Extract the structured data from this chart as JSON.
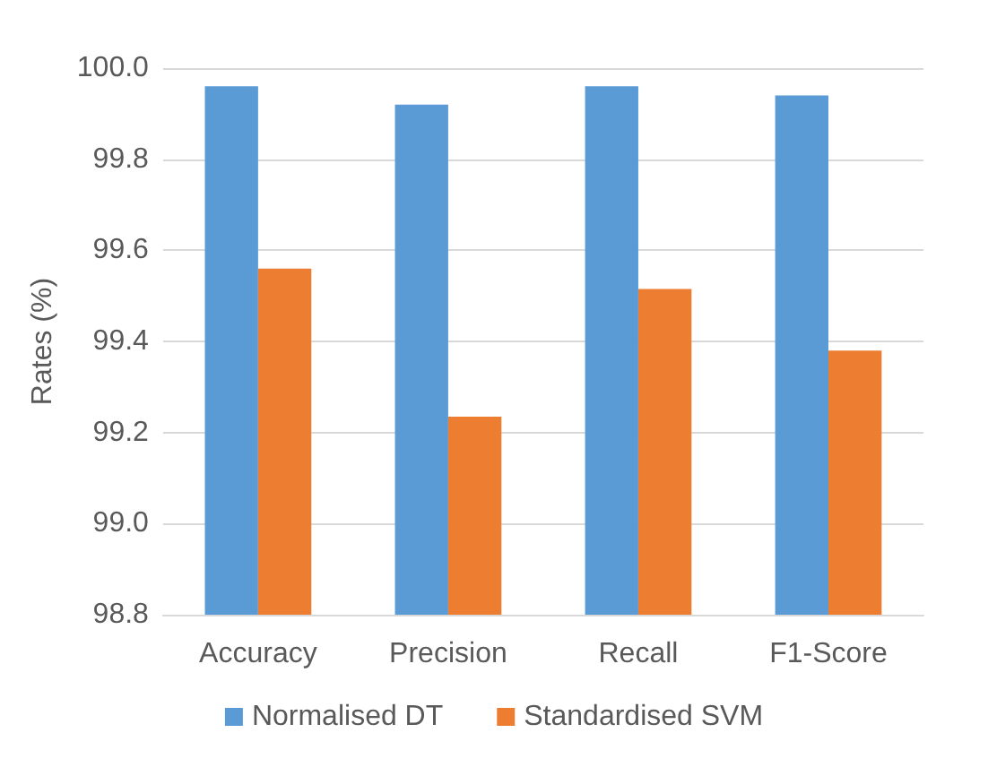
{
  "chart_data": {
    "type": "bar",
    "ylabel": "Rates (%)",
    "categories": [
      "Accuracy",
      "Precision",
      "Recall",
      "F1-Score"
    ],
    "series": [
      {
        "name": "Normalised DT",
        "color": "#5b9bd5",
        "values": [
          99.96,
          99.92,
          99.96,
          99.94
        ]
      },
      {
        "name": "Standardised SVM",
        "color": "#ed7d31",
        "values": [
          99.56,
          99.235,
          99.515,
          99.38
        ]
      }
    ],
    "ylim": [
      98.8,
      100.0
    ],
    "yticks": [
      {
        "value": 98.8,
        "label": "98.8"
      },
      {
        "value": 99.0,
        "label": "99.0"
      },
      {
        "value": 99.2,
        "label": "99.2"
      },
      {
        "value": 99.4,
        "label": "99.4"
      },
      {
        "value": 99.6,
        "label": "99.6"
      },
      {
        "value": 99.8,
        "label": "99.8"
      },
      {
        "value": 100.0,
        "label": "100.0"
      }
    ],
    "grid": "y",
    "legend": "bottom"
  }
}
